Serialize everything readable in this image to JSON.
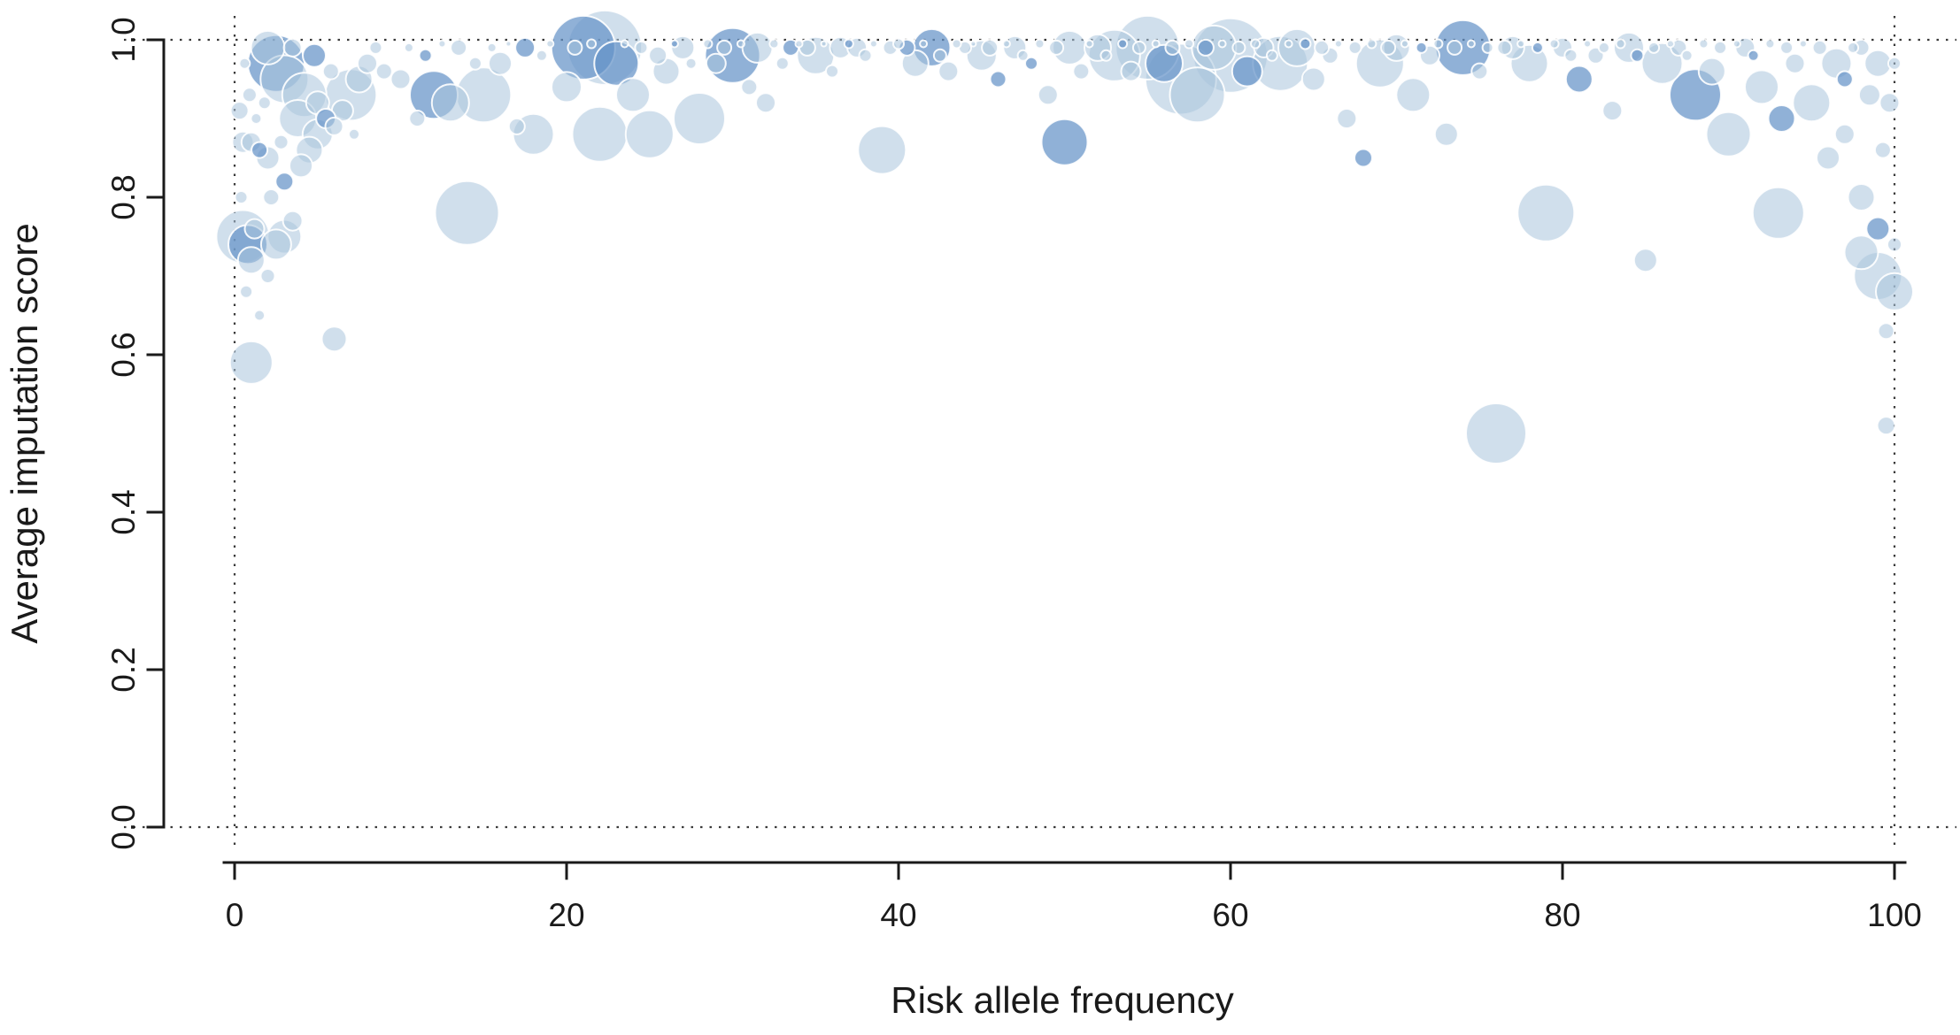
{
  "chart_data": {
    "type": "scatter",
    "title": "",
    "xlabel": "Risk allele frequency",
    "ylabel": "Average imputation score",
    "xlim": [
      0,
      100
    ],
    "ylim": [
      0.0,
      1.0
    ],
    "x_ticks": [
      "0",
      "20",
      "40",
      "60",
      "80",
      "100"
    ],
    "x_tick_values": [
      0,
      20,
      40,
      60,
      80,
      100
    ],
    "y_ticks": [
      "0.0",
      "0.2",
      "0.4",
      "0.6",
      "0.8",
      "1.0"
    ],
    "y_tick_values": [
      0.0,
      0.2,
      0.4,
      0.6,
      0.8,
      1.0
    ],
    "grid": false,
    "legend": "none",
    "guide_lines": {
      "vertical_x": [
        0,
        100
      ],
      "horizontal_y": [
        0.0,
        1.0
      ],
      "style": "dotted"
    },
    "bubble_colors": {
      "light": "#a9c4dd",
      "dark": "#6593c7",
      "stroke": "#ffffff"
    },
    "points_format": [
      "x",
      "y",
      "radius_px",
      "shade(0=light,1=dark)"
    ],
    "points": [
      [
        0.3,
        0.91,
        10,
        0
      ],
      [
        0.4,
        0.8,
        7,
        0
      ],
      [
        0.5,
        0.75,
        30,
        0
      ],
      [
        0.5,
        0.87,
        12,
        0
      ],
      [
        0.6,
        0.97,
        6,
        0
      ],
      [
        0.7,
        0.68,
        7,
        0
      ],
      [
        0.8,
        0.74,
        22,
        1
      ],
      [
        0.9,
        0.93,
        8,
        0
      ],
      [
        1,
        0.59,
        24,
        0
      ],
      [
        1,
        0.72,
        15,
        0
      ],
      [
        1,
        0.87,
        11,
        0
      ],
      [
        1.2,
        0.76,
        11,
        0
      ],
      [
        1.3,
        0.9,
        6,
        0
      ],
      [
        1.5,
        0.65,
        6,
        0
      ],
      [
        1.5,
        0.86,
        9,
        1
      ],
      [
        1.8,
        0.92,
        7,
        0
      ],
      [
        2,
        0.7,
        8,
        0
      ],
      [
        2,
        0.85,
        13,
        0
      ],
      [
        2,
        0.99,
        19,
        0
      ],
      [
        2.2,
        0.8,
        9,
        0
      ],
      [
        2.5,
        0.74,
        17,
        0
      ],
      [
        2.5,
        0.97,
        32,
        1
      ],
      [
        2.8,
        0.87,
        8,
        0
      ],
      [
        3,
        0.75,
        19,
        0
      ],
      [
        3,
        0.82,
        10,
        1
      ],
      [
        3,
        0.95,
        27,
        0
      ],
      [
        3.5,
        0.77,
        11,
        0
      ],
      [
        3.5,
        0.99,
        10,
        0
      ],
      [
        3.8,
        0.9,
        21,
        0
      ],
      [
        4,
        0.84,
        13,
        0
      ],
      [
        4.2,
        0.93,
        25,
        0
      ],
      [
        4.5,
        0.86,
        15,
        0
      ],
      [
        4.8,
        0.98,
        13,
        1
      ],
      [
        5,
        0.88,
        17,
        0
      ],
      [
        5,
        0.92,
        13,
        0
      ],
      [
        5.5,
        0.9,
        11,
        1
      ],
      [
        5.8,
        0.96,
        9,
        0
      ],
      [
        6,
        0.62,
        14,
        0
      ],
      [
        6,
        0.89,
        10,
        0
      ],
      [
        6.5,
        0.91,
        12,
        0
      ],
      [
        7,
        0.93,
        29,
        0
      ],
      [
        7.2,
        0.88,
        6,
        0
      ],
      [
        7.5,
        0.95,
        15,
        0
      ],
      [
        8,
        0.97,
        11,
        0
      ],
      [
        8.5,
        0.99,
        7,
        0
      ],
      [
        9,
        0.96,
        9,
        0
      ],
      [
        10,
        0.95,
        11,
        0
      ],
      [
        10.5,
        0.99,
        5,
        0
      ],
      [
        11,
        0.9,
        9,
        0
      ],
      [
        11.5,
        0.98,
        7,
        1
      ],
      [
        12,
        0.93,
        27,
        1
      ],
      [
        12.5,
        0.995,
        4,
        0
      ],
      [
        13,
        0.92,
        21,
        0
      ],
      [
        13.5,
        0.99,
        9,
        0
      ],
      [
        14,
        0.78,
        36,
        0
      ],
      [
        14.5,
        0.97,
        7,
        0
      ],
      [
        15,
        0.93,
        31,
        0
      ],
      [
        15.5,
        0.99,
        5,
        0
      ],
      [
        16,
        0.97,
        13,
        0
      ],
      [
        16.5,
        0.995,
        3,
        0
      ],
      [
        17,
        0.89,
        9,
        0
      ],
      [
        17.5,
        0.99,
        11,
        1
      ],
      [
        18,
        0.88,
        23,
        0
      ],
      [
        18.5,
        0.98,
        6,
        0
      ],
      [
        19,
        0.995,
        4,
        0
      ],
      [
        20,
        0.94,
        17,
        0
      ],
      [
        20.5,
        0.99,
        8,
        0
      ],
      [
        21,
        0.99,
        36,
        1
      ],
      [
        21.5,
        0.995,
        5,
        0
      ],
      [
        22,
        0.88,
        31,
        0
      ],
      [
        22.3,
        0.99,
        42,
        0
      ],
      [
        23,
        0.97,
        25,
        1
      ],
      [
        23.5,
        0.995,
        4,
        0
      ],
      [
        24,
        0.93,
        19,
        0
      ],
      [
        24.5,
        0.99,
        7,
        0
      ],
      [
        25,
        0.88,
        27,
        0
      ],
      [
        25.5,
        0.98,
        10,
        0
      ],
      [
        26,
        0.96,
        15,
        0
      ],
      [
        26.5,
        0.995,
        4,
        1
      ],
      [
        27,
        0.99,
        13,
        0
      ],
      [
        27.5,
        0.97,
        6,
        0
      ],
      [
        28,
        0.9,
        29,
        0
      ],
      [
        28.5,
        0.995,
        5,
        0
      ],
      [
        29,
        0.97,
        11,
        0
      ],
      [
        29.5,
        0.99,
        8,
        0
      ],
      [
        30,
        0.98,
        31,
        1
      ],
      [
        30.5,
        0.995,
        4,
        0
      ],
      [
        31,
        0.94,
        9,
        0
      ],
      [
        31.5,
        0.99,
        17,
        0
      ],
      [
        32,
        0.92,
        11,
        0
      ],
      [
        32.5,
        0.995,
        5,
        0
      ],
      [
        33,
        0.97,
        7,
        0
      ],
      [
        33.5,
        0.99,
        9,
        1
      ],
      [
        34,
        0.995,
        4,
        0
      ],
      [
        34.5,
        0.99,
        9,
        0
      ],
      [
        35,
        0.98,
        21,
        0
      ],
      [
        35.5,
        0.995,
        3,
        0
      ],
      [
        36,
        0.96,
        7,
        0
      ],
      [
        36.5,
        0.99,
        12,
        0
      ],
      [
        37,
        0.995,
        5,
        1
      ],
      [
        37.5,
        0.99,
        11,
        0
      ],
      [
        38,
        0.98,
        7,
        0
      ],
      [
        38.5,
        0.995,
        4,
        0
      ],
      [
        39,
        0.86,
        27,
        0
      ],
      [
        39.5,
        0.99,
        8,
        0
      ],
      [
        40,
        0.995,
        6,
        0
      ],
      [
        40.5,
        0.99,
        9,
        1
      ],
      [
        41,
        0.97,
        15,
        0
      ],
      [
        41.5,
        0.995,
        4,
        0
      ],
      [
        42,
        0.99,
        21,
        1
      ],
      [
        42.5,
        0.98,
        7,
        0
      ],
      [
        43,
        0.96,
        11,
        0
      ],
      [
        43.5,
        0.995,
        5,
        0
      ],
      [
        44,
        0.99,
        7,
        0
      ],
      [
        44.5,
        0.995,
        3,
        0
      ],
      [
        45,
        0.98,
        17,
        0
      ],
      [
        45.5,
        0.99,
        9,
        0
      ],
      [
        46,
        0.95,
        9,
        1
      ],
      [
        46.5,
        0.995,
        4,
        0
      ],
      [
        47,
        0.99,
        13,
        0
      ],
      [
        47.5,
        0.98,
        6,
        0
      ],
      [
        48,
        0.97,
        7,
        1
      ],
      [
        48.5,
        0.995,
        5,
        0
      ],
      [
        49,
        0.93,
        11,
        0
      ],
      [
        49.5,
        0.99,
        8,
        0
      ],
      [
        50,
        0.87,
        26,
        1
      ],
      [
        50.3,
        0.99,
        19,
        0
      ],
      [
        51,
        0.96,
        9,
        0
      ],
      [
        51.5,
        0.995,
        4,
        0
      ],
      [
        52,
        0.99,
        15,
        0
      ],
      [
        52.5,
        0.98,
        6,
        0
      ],
      [
        53,
        0.98,
        29,
        0
      ],
      [
        53.5,
        0.995,
        5,
        1
      ],
      [
        54,
        0.96,
        11,
        0
      ],
      [
        54.5,
        0.99,
        7,
        0
      ],
      [
        55,
        0.99,
        36,
        0
      ],
      [
        55.5,
        0.995,
        4,
        0
      ],
      [
        56,
        0.97,
        21,
        1
      ],
      [
        56.5,
        0.99,
        8,
        0
      ],
      [
        57,
        0.95,
        40,
        0
      ],
      [
        57.5,
        0.995,
        5,
        0
      ],
      [
        58,
        0.93,
        31,
        0
      ],
      [
        58.5,
        0.99,
        9,
        1
      ],
      [
        59,
        0.99,
        25,
        0
      ],
      [
        59.5,
        0.995,
        4,
        0
      ],
      [
        60,
        0.98,
        42,
        0
      ],
      [
        60.5,
        0.99,
        7,
        0
      ],
      [
        61,
        0.96,
        17,
        1
      ],
      [
        61.5,
        0.995,
        5,
        0
      ],
      [
        62,
        0.99,
        11,
        0
      ],
      [
        62.5,
        0.98,
        6,
        0
      ],
      [
        63,
        0.97,
        31,
        0
      ],
      [
        63.5,
        0.995,
        4,
        0
      ],
      [
        64,
        0.99,
        21,
        0
      ],
      [
        64.5,
        0.995,
        6,
        1
      ],
      [
        65,
        0.95,
        13,
        0
      ],
      [
        65.5,
        0.99,
        8,
        0
      ],
      [
        66,
        0.98,
        9,
        0
      ],
      [
        66.5,
        0.995,
        4,
        0
      ],
      [
        67,
        0.9,
        11,
        0
      ],
      [
        67.5,
        0.99,
        7,
        0
      ],
      [
        68,
        0.85,
        10,
        1
      ],
      [
        68.5,
        0.995,
        5,
        0
      ],
      [
        69,
        0.97,
        27,
        0
      ],
      [
        69.5,
        0.99,
        8,
        0
      ],
      [
        70,
        0.99,
        15,
        0
      ],
      [
        70.5,
        0.995,
        4,
        0
      ],
      [
        71,
        0.93,
        19,
        0
      ],
      [
        71.5,
        0.99,
        6,
        1
      ],
      [
        72,
        0.98,
        11,
        0
      ],
      [
        72.5,
        0.995,
        5,
        0
      ],
      [
        73,
        0.88,
        13,
        0
      ],
      [
        73.5,
        0.99,
        8,
        0
      ],
      [
        74,
        0.99,
        31,
        1
      ],
      [
        74.5,
        0.995,
        4,
        0
      ],
      [
        75,
        0.96,
        9,
        0
      ],
      [
        75.5,
        0.99,
        6,
        0
      ],
      [
        76,
        0.5,
        34,
        0
      ],
      [
        76.5,
        0.99,
        8,
        0
      ],
      [
        77,
        0.99,
        13,
        0
      ],
      [
        77.5,
        0.995,
        4,
        0
      ],
      [
        78,
        0.97,
        21,
        0
      ],
      [
        78.5,
        0.99,
        6,
        1
      ],
      [
        79,
        0.78,
        32,
        0
      ],
      [
        79.5,
        0.995,
        5,
        0
      ],
      [
        80,
        0.99,
        11,
        0
      ],
      [
        80.5,
        0.98,
        7,
        0
      ],
      [
        81,
        0.95,
        15,
        1
      ],
      [
        81.5,
        0.995,
        4,
        0
      ],
      [
        82,
        0.98,
        9,
        0
      ],
      [
        82.5,
        0.99,
        6,
        0
      ],
      [
        83,
        0.91,
        11,
        0
      ],
      [
        83.5,
        0.995,
        5,
        0
      ],
      [
        84,
        0.99,
        17,
        0
      ],
      [
        84.5,
        0.98,
        7,
        1
      ],
      [
        85,
        0.72,
        13,
        0
      ],
      [
        85.5,
        0.99,
        6,
        0
      ],
      [
        86,
        0.97,
        23,
        0
      ],
      [
        86.5,
        0.995,
        4,
        0
      ],
      [
        87,
        0.99,
        9,
        0
      ],
      [
        87.5,
        0.98,
        6,
        0
      ],
      [
        88,
        0.93,
        29,
        1
      ],
      [
        88.5,
        0.995,
        5,
        0
      ],
      [
        89,
        0.96,
        15,
        0
      ],
      [
        89.5,
        0.99,
        7,
        0
      ],
      [
        90,
        0.88,
        25,
        0
      ],
      [
        90.5,
        0.995,
        4,
        0
      ],
      [
        91,
        0.99,
        11,
        0
      ],
      [
        91.5,
        0.98,
        6,
        1
      ],
      [
        92,
        0.94,
        19,
        0
      ],
      [
        92.5,
        0.995,
        5,
        0
      ],
      [
        93,
        0.78,
        29,
        0
      ],
      [
        93.2,
        0.9,
        15,
        1
      ],
      [
        93.5,
        0.99,
        7,
        0
      ],
      [
        94,
        0.97,
        11,
        0
      ],
      [
        94.5,
        0.995,
        4,
        0
      ],
      [
        95,
        0.92,
        21,
        0
      ],
      [
        95.5,
        0.99,
        8,
        0
      ],
      [
        96,
        0.85,
        13,
        0
      ],
      [
        96.5,
        0.97,
        17,
        0
      ],
      [
        97,
        0.88,
        11,
        0
      ],
      [
        97,
        0.95,
        9,
        1
      ],
      [
        97.5,
        0.99,
        6,
        0
      ],
      [
        98,
        0.73,
        19,
        0
      ],
      [
        98,
        0.8,
        15,
        0
      ],
      [
        98,
        0.99,
        9,
        0
      ],
      [
        98.5,
        0.93,
        12,
        0
      ],
      [
        99,
        0.7,
        27,
        0
      ],
      [
        99,
        0.76,
        13,
        1
      ],
      [
        99,
        0.97,
        15,
        0
      ],
      [
        99.3,
        0.86,
        9,
        0
      ],
      [
        99.5,
        0.51,
        10,
        0
      ],
      [
        99.5,
        0.63,
        9,
        0
      ],
      [
        99.7,
        0.92,
        11,
        0
      ],
      [
        100,
        0.68,
        21,
        0
      ],
      [
        100,
        0.74,
        8,
        0
      ],
      [
        100,
        0.97,
        7,
        0
      ]
    ]
  }
}
